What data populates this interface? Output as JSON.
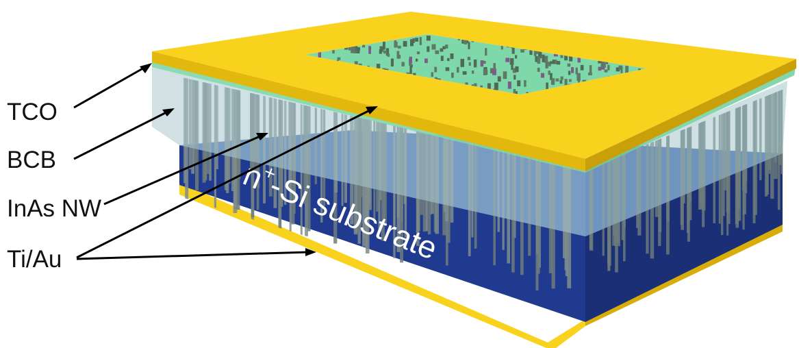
{
  "labels": {
    "tco": "TCO",
    "bcb": "BCB",
    "inas_nw": "InAs NW",
    "ti_au": "Ti/Au"
  },
  "substrate": {
    "text": "n",
    "sup": "+",
    "rest": "-Si substrate"
  },
  "colors": {
    "gold": "#f8d21c",
    "substrate_top": "#3f67b3",
    "substrate_front": "#1f3a8e",
    "substrate_side": "#1a2f75",
    "bcb": "#a9c8cf",
    "tco": "#7fd8a9",
    "nanowire": "#6e7d7c"
  }
}
